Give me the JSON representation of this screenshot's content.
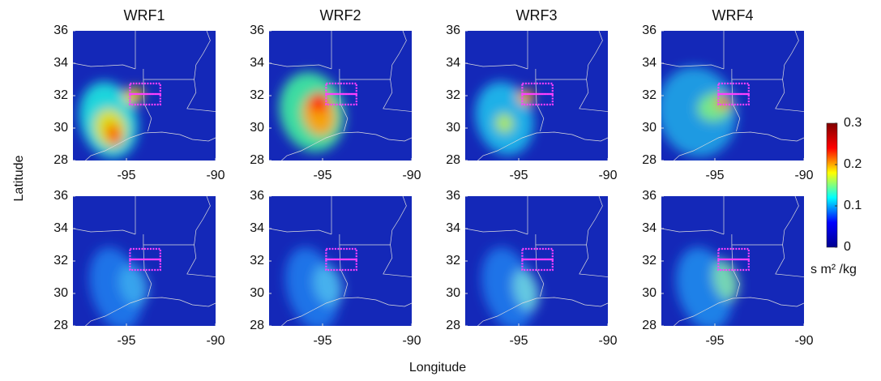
{
  "chart_data": [
    {
      "type": "heatmap",
      "title": "WRF1",
      "xlim": [
        -98,
        -90
      ],
      "ylim": [
        28,
        36
      ],
      "xticks": [
        -95,
        -90
      ],
      "yticks": [
        28,
        30,
        32,
        34,
        36
      ]
    },
    {
      "type": "heatmap",
      "title": "WRF2",
      "xlim": [
        -98,
        -90
      ],
      "ylim": [
        28,
        36
      ],
      "xticks": [
        -95,
        -90
      ],
      "yticks": [
        28,
        30,
        32,
        34,
        36
      ]
    },
    {
      "type": "heatmap",
      "title": "WRF3",
      "xlim": [
        -98,
        -90
      ],
      "ylim": [
        28,
        36
      ],
      "xticks": [
        -95,
        -90
      ],
      "yticks": [
        28,
        30,
        32,
        34,
        36
      ]
    },
    {
      "type": "heatmap",
      "title": "WRF4",
      "xlim": [
        -98,
        -90
      ],
      "ylim": [
        28,
        36
      ],
      "xticks": [
        -95,
        -90
      ],
      "yticks": [
        28,
        30,
        32,
        34,
        36
      ]
    },
    {
      "type": "heatmap",
      "xlim": [
        -98,
        -90
      ],
      "ylim": [
        28,
        36
      ],
      "xticks": [
        -95,
        -90
      ],
      "yticks": [
        28,
        30,
        32,
        34,
        36
      ]
    },
    {
      "type": "heatmap",
      "xlim": [
        -98,
        -90
      ],
      "ylim": [
        28,
        36
      ],
      "xticks": [
        -95,
        -90
      ],
      "yticks": [
        28,
        30,
        32,
        34,
        36
      ]
    },
    {
      "type": "heatmap",
      "xlim": [
        -98,
        -90
      ],
      "ylim": [
        28,
        36
      ],
      "xticks": [
        -95,
        -90
      ],
      "yticks": [
        28,
        30,
        32,
        34,
        36
      ]
    },
    {
      "type": "heatmap",
      "xlim": [
        -98,
        -90
      ],
      "ylim": [
        28,
        36
      ],
      "xticks": [
        -95,
        -90
      ],
      "yticks": [
        28,
        30,
        32,
        34,
        36
      ]
    }
  ],
  "figure": {
    "xlabel": "Longitude",
    "ylabel": "Latitude"
  },
  "colorbar": {
    "label": "s m² /kg",
    "lim": [
      0,
      0.3
    ],
    "ticks": [
      0,
      0.1,
      0.2,
      0.3
    ],
    "colors": [
      "#00008f",
      "#0000ff",
      "#00ffff",
      "#ffff00",
      "#ff0000",
      "#800000"
    ]
  }
}
